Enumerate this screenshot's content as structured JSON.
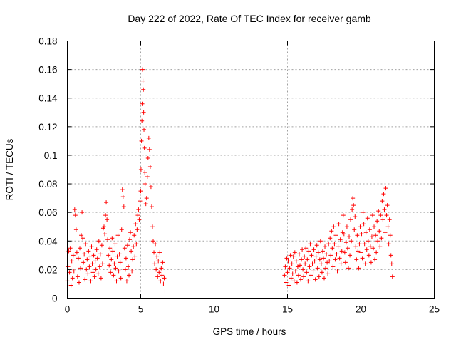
{
  "chart_data": {
    "type": "scatter",
    "title": "Day 222 of 2022, Rate Of TEC Index for receiver gamb",
    "xlabel": "GPS time / hours",
    "ylabel": "ROTI / TECUs",
    "xlim": [
      0,
      25
    ],
    "ylim": [
      0,
      0.18
    ],
    "xticks": [
      0,
      5,
      10,
      15,
      20,
      25
    ],
    "xtick_labels": [
      "0",
      "5",
      "10",
      "15",
      "20",
      "25"
    ],
    "yticks": [
      0,
      0.02,
      0.04,
      0.06,
      0.08,
      0.1,
      0.12,
      0.14,
      0.16,
      0.18
    ],
    "ytick_labels": [
      "0",
      "0.02",
      "0.04",
      "0.06",
      "0.08",
      "0.1",
      "0.12",
      "0.14",
      "0.16",
      "0.18"
    ],
    "grid": true,
    "marker": "+",
    "color": "#ff0000",
    "series": [
      {
        "name": "ROTI",
        "points": [
          [
            0.0,
            0.012
          ],
          [
            0.05,
            0.022
          ],
          [
            0.1,
            0.033
          ],
          [
            0.15,
            0.018
          ],
          [
            0.2,
            0.035
          ],
          [
            0.25,
            0.009
          ],
          [
            0.3,
            0.026
          ],
          [
            0.35,
            0.014
          ],
          [
            0.4,
            0.03
          ],
          [
            0.45,
            0.019
          ],
          [
            0.5,
            0.062
          ],
          [
            0.55,
            0.058
          ],
          [
            0.6,
            0.048
          ],
          [
            0.65,
            0.032
          ],
          [
            0.7,
            0.015
          ],
          [
            0.75,
            0.028
          ],
          [
            0.8,
            0.011
          ],
          [
            0.85,
            0.035
          ],
          [
            0.9,
            0.021
          ],
          [
            0.95,
            0.044
          ],
          [
            1.0,
            0.06
          ],
          [
            1.05,
            0.042
          ],
          [
            1.1,
            0.025
          ],
          [
            1.15,
            0.031
          ],
          [
            1.2,
            0.013
          ],
          [
            1.25,
            0.038
          ],
          [
            1.3,
            0.02
          ],
          [
            1.35,
            0.027
          ],
          [
            1.4,
            0.017
          ],
          [
            1.45,
            0.033
          ],
          [
            1.5,
            0.022
          ],
          [
            1.55,
            0.029
          ],
          [
            1.6,
            0.012
          ],
          [
            1.65,
            0.036
          ],
          [
            1.7,
            0.024
          ],
          [
            1.75,
            0.018
          ],
          [
            1.8,
            0.03
          ],
          [
            1.85,
            0.015
          ],
          [
            1.9,
            0.026
          ],
          [
            1.95,
            0.02
          ],
          [
            2.0,
            0.034
          ],
          [
            2.05,
            0.028
          ],
          [
            2.1,
            0.017
          ],
          [
            2.15,
            0.04
          ],
          [
            2.2,
            0.022
          ],
          [
            2.25,
            0.031
          ],
          [
            2.3,
            0.014
          ],
          [
            2.35,
            0.037
          ],
          [
            2.4,
            0.024
          ],
          [
            2.45,
            0.049
          ],
          [
            2.5,
            0.05
          ],
          [
            2.55,
            0.045
          ],
          [
            2.6,
            0.058
          ],
          [
            2.65,
            0.067
          ],
          [
            2.7,
            0.055
          ],
          [
            2.75,
            0.041
          ],
          [
            2.8,
            0.03
          ],
          [
            2.85,
            0.023
          ],
          [
            2.9,
            0.035
          ],
          [
            2.95,
            0.018
          ],
          [
            3.0,
            0.027
          ],
          [
            3.05,
            0.042
          ],
          [
            3.1,
            0.033
          ],
          [
            3.15,
            0.016
          ],
          [
            3.2,
            0.024
          ],
          [
            3.25,
            0.038
          ],
          [
            3.3,
            0.021
          ],
          [
            3.35,
            0.012
          ],
          [
            3.4,
            0.029
          ],
          [
            3.45,
            0.044
          ],
          [
            3.5,
            0.019
          ],
          [
            3.55,
            0.031
          ],
          [
            3.6,
            0.025
          ],
          [
            3.65,
            0.014
          ],
          [
            3.7,
            0.048
          ],
          [
            3.75,
            0.076
          ],
          [
            3.8,
            0.071
          ],
          [
            3.85,
            0.064
          ],
          [
            3.9,
            0.035
          ],
          [
            3.95,
            0.02
          ],
          [
            4.0,
            0.028
          ],
          [
            4.05,
            0.012
          ],
          [
            4.1,
            0.037
          ],
          [
            4.15,
            0.022
          ],
          [
            4.2,
            0.016
          ],
          [
            4.25,
            0.041
          ],
          [
            4.3,
            0.046
          ],
          [
            4.35,
            0.033
          ],
          [
            4.4,
            0.019
          ],
          [
            4.45,
            0.027
          ],
          [
            4.5,
            0.036
          ],
          [
            4.55,
            0.044
          ],
          [
            4.6,
            0.029
          ],
          [
            4.65,
            0.052
          ],
          [
            4.7,
            0.038
          ],
          [
            4.75,
            0.048
          ],
          [
            4.8,
            0.058
          ],
          [
            4.85,
            0.062
          ],
          [
            4.9,
            0.055
          ],
          [
            4.95,
            0.068
          ],
          [
            5.0,
            0.075
          ],
          [
            5.02,
            0.09
          ],
          [
            5.05,
            0.11
          ],
          [
            5.08,
            0.124
          ],
          [
            5.1,
            0.136
          ],
          [
            5.12,
            0.16
          ],
          [
            5.15,
            0.152
          ],
          [
            5.18,
            0.146
          ],
          [
            5.2,
            0.13
          ],
          [
            5.22,
            0.118
          ],
          [
            5.25,
            0.105
          ],
          [
            5.28,
            0.088
          ],
          [
            5.3,
            0.08
          ],
          [
            5.35,
            0.066
          ],
          [
            5.4,
            0.07
          ],
          [
            5.45,
            0.085
          ],
          [
            5.5,
            0.098
          ],
          [
            5.55,
            0.112
          ],
          [
            5.6,
            0.104
          ],
          [
            5.65,
            0.092
          ],
          [
            5.7,
            0.078
          ],
          [
            5.75,
            0.064
          ],
          [
            5.8,
            0.05
          ],
          [
            5.85,
            0.04
          ],
          [
            5.9,
            0.032
          ],
          [
            5.95,
            0.024
          ],
          [
            6.0,
            0.038
          ],
          [
            6.05,
            0.02
          ],
          [
            6.1,
            0.029
          ],
          [
            6.15,
            0.015
          ],
          [
            6.2,
            0.026
          ],
          [
            6.25,
            0.018
          ],
          [
            6.3,
            0.032
          ],
          [
            6.35,
            0.012
          ],
          [
            6.4,
            0.021
          ],
          [
            6.45,
            0.016
          ],
          [
            6.5,
            0.025
          ],
          [
            6.55,
            0.01
          ],
          [
            6.6,
            0.014
          ],
          [
            6.65,
            0.005
          ],
          [
            14.8,
            0.016
          ],
          [
            14.85,
            0.022
          ],
          [
            14.9,
            0.011
          ],
          [
            14.95,
            0.028
          ],
          [
            15.0,
            0.018
          ],
          [
            15.05,
            0.026
          ],
          [
            15.1,
            0.009
          ],
          [
            15.15,
            0.021
          ],
          [
            15.2,
            0.03
          ],
          [
            15.25,
            0.014
          ],
          [
            15.3,
            0.024
          ],
          [
            15.35,
            0.017
          ],
          [
            15.4,
            0.029
          ],
          [
            15.45,
            0.012
          ],
          [
            15.5,
            0.032
          ],
          [
            15.55,
            0.019
          ],
          [
            15.6,
            0.026
          ],
          [
            15.65,
            0.011
          ],
          [
            15.7,
            0.022
          ],
          [
            15.75,
            0.016
          ],
          [
            15.8,
            0.031
          ],
          [
            15.85,
            0.023
          ],
          [
            15.9,
            0.013
          ],
          [
            15.95,
            0.027
          ],
          [
            16.0,
            0.034
          ],
          [
            16.05,
            0.02
          ],
          [
            16.1,
            0.015
          ],
          [
            16.15,
            0.029
          ],
          [
            16.2,
            0.024
          ],
          [
            16.25,
            0.035
          ],
          [
            16.3,
            0.018
          ],
          [
            16.35,
            0.027
          ],
          [
            16.4,
            0.012
          ],
          [
            16.45,
            0.033
          ],
          [
            16.5,
            0.022
          ],
          [
            16.55,
            0.038
          ],
          [
            16.6,
            0.016
          ],
          [
            16.65,
            0.03
          ],
          [
            16.7,
            0.024
          ],
          [
            16.75,
            0.019
          ],
          [
            16.8,
            0.034
          ],
          [
            16.85,
            0.026
          ],
          [
            16.9,
            0.013
          ],
          [
            16.95,
            0.029
          ],
          [
            17.0,
            0.037
          ],
          [
            17.05,
            0.021
          ],
          [
            17.1,
            0.032
          ],
          [
            17.15,
            0.015
          ],
          [
            17.2,
            0.027
          ],
          [
            17.25,
            0.04
          ],
          [
            17.3,
            0.024
          ],
          [
            17.35,
            0.018
          ],
          [
            17.4,
            0.033
          ],
          [
            17.45,
            0.028
          ],
          [
            17.5,
            0.014
          ],
          [
            17.55,
            0.036
          ],
          [
            17.6,
            0.021
          ],
          [
            17.65,
            0.031
          ],
          [
            17.7,
            0.025
          ],
          [
            17.75,
            0.017
          ],
          [
            17.8,
            0.038
          ],
          [
            17.85,
            0.026
          ],
          [
            17.9,
            0.042
          ],
          [
            17.95,
            0.03
          ],
          [
            18.0,
            0.047
          ],
          [
            18.05,
            0.035
          ],
          [
            18.1,
            0.022
          ],
          [
            18.15,
            0.05
          ],
          [
            18.2,
            0.038
          ],
          [
            18.25,
            0.027
          ],
          [
            18.3,
            0.044
          ],
          [
            18.35,
            0.031
          ],
          [
            18.4,
            0.019
          ],
          [
            18.45,
            0.036
          ],
          [
            18.5,
            0.052
          ],
          [
            18.55,
            0.028
          ],
          [
            18.6,
            0.041
          ],
          [
            18.65,
            0.024
          ],
          [
            18.7,
            0.033
          ],
          [
            18.75,
            0.046
          ],
          [
            18.8,
            0.058
          ],
          [
            18.85,
            0.045
          ],
          [
            18.9,
            0.032
          ],
          [
            18.95,
            0.025
          ],
          [
            19.0,
            0.039
          ],
          [
            19.05,
            0.05
          ],
          [
            19.1,
            0.035
          ],
          [
            19.15,
            0.021
          ],
          [
            19.2,
            0.043
          ],
          [
            19.25,
            0.03
          ],
          [
            19.3,
            0.055
          ],
          [
            19.35,
            0.04
          ],
          [
            19.4,
            0.062
          ],
          [
            19.45,
            0.07
          ],
          [
            19.5,
            0.065
          ],
          [
            19.55,
            0.048
          ],
          [
            19.6,
            0.057
          ],
          [
            19.65,
            0.036
          ],
          [
            19.7,
            0.027
          ],
          [
            19.75,
            0.044
          ],
          [
            19.8,
            0.033
          ],
          [
            19.85,
            0.021
          ],
          [
            19.9,
            0.038
          ],
          [
            19.95,
            0.05
          ],
          [
            20.0,
            0.032
          ],
          [
            20.05,
            0.045
          ],
          [
            20.1,
            0.028
          ],
          [
            20.15,
            0.06
          ],
          [
            20.2,
            0.052
          ],
          [
            20.25,
            0.038
          ],
          [
            20.3,
            0.024
          ],
          [
            20.35,
            0.046
          ],
          [
            20.4,
            0.034
          ],
          [
            20.45,
            0.056
          ],
          [
            20.5,
            0.04
          ],
          [
            20.55,
            0.03
          ],
          [
            20.6,
            0.048
          ],
          [
            20.65,
            0.036
          ],
          [
            20.7,
            0.025
          ],
          [
            20.75,
            0.043
          ],
          [
            20.8,
            0.058
          ],
          [
            20.85,
            0.035
          ],
          [
            20.9,
            0.05
          ],
          [
            20.95,
            0.027
          ],
          [
            21.0,
            0.044
          ],
          [
            21.05,
            0.032
          ],
          [
            21.1,
            0.054
          ],
          [
            21.15,
            0.04
          ],
          [
            21.2,
            0.061
          ],
          [
            21.25,
            0.047
          ],
          [
            21.3,
            0.036
          ],
          [
            21.35,
            0.058
          ],
          [
            21.4,
            0.042
          ],
          [
            21.45,
            0.068
          ],
          [
            21.5,
            0.055
          ],
          [
            21.55,
            0.073
          ],
          [
            21.6,
            0.062
          ],
          [
            21.65,
            0.046
          ],
          [
            21.7,
            0.077
          ],
          [
            21.75,
            0.058
          ],
          [
            21.8,
            0.065
          ],
          [
            21.85,
            0.05
          ],
          [
            21.9,
            0.038
          ],
          [
            21.95,
            0.055
          ],
          [
            22.0,
            0.044
          ],
          [
            22.05,
            0.03
          ],
          [
            22.1,
            0.024
          ],
          [
            22.15,
            0.015
          ]
        ]
      }
    ]
  }
}
